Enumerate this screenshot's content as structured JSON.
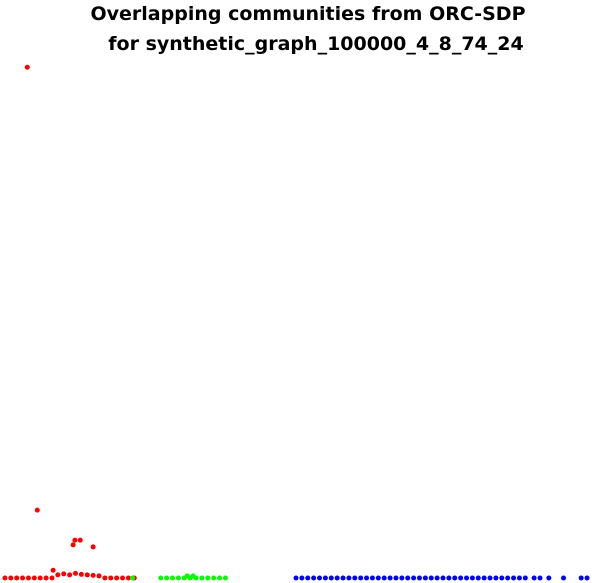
{
  "chart_data": {
    "type": "scatter",
    "title": [
      "Overlapping communities from ORC-SDP",
      "for synthetic_graph_100000_4_8_74_24"
    ],
    "xlim": [
      0,
      100
    ],
    "ylim": [
      0,
      100
    ],
    "series": [
      {
        "color": "#ff0000",
        "x": [
          4.3,
          6.0,
          12.4,
          13.3,
          12.1,
          15.5,
          8.7,
          0.5,
          1.5,
          2.5,
          3.5,
          4.5,
          5.5,
          6.5,
          7.5,
          8.5,
          9.5,
          10.5,
          11.5,
          12.5,
          13.5,
          14.5,
          15.5,
          16.5,
          17.5,
          18.5,
          19.5,
          20.5,
          21.5,
          22.5
        ],
        "y": [
          98.6,
          13.1,
          7.3,
          7.3,
          6.4,
          6.0,
          1.5,
          0,
          0,
          0,
          0,
          0,
          0,
          0,
          0,
          0,
          0.6,
          0.8,
          0.6,
          0.9,
          0.7,
          0.6,
          0.5,
          0.4,
          0,
          0,
          0,
          0,
          0,
          0
        ]
      },
      {
        "color": "#00ff00",
        "x": [
          22.2,
          27,
          28,
          29,
          30,
          31,
          32,
          33,
          34,
          35,
          36,
          37,
          38,
          31.5,
          32.5
        ],
        "y": [
          0,
          0,
          0,
          0,
          0,
          0,
          0,
          0,
          0,
          0,
          0,
          0,
          0,
          0.4,
          0.4
        ]
      },
      {
        "color": "#0000ff",
        "x": [
          50,
          51,
          52,
          53,
          54,
          55,
          56,
          57,
          58,
          59,
          60,
          61,
          62,
          63,
          64,
          65,
          66,
          67,
          68,
          69,
          70,
          71,
          72,
          73,
          74,
          75,
          76,
          77,
          78,
          79,
          80,
          81,
          82,
          83,
          84,
          85,
          86,
          87,
          88,
          89,
          90.5,
          91.5,
          93,
          95.5,
          98.5,
          99.5
        ],
        "y": [
          0,
          0,
          0,
          0,
          0,
          0,
          0,
          0,
          0,
          0,
          0,
          0,
          0,
          0,
          0,
          0,
          0,
          0,
          0,
          0,
          0,
          0,
          0,
          0,
          0,
          0,
          0,
          0,
          0,
          0,
          0,
          0,
          0,
          0,
          0,
          0,
          0,
          0,
          0,
          0,
          0,
          0,
          0,
          0,
          0,
          0
        ]
      }
    ]
  }
}
